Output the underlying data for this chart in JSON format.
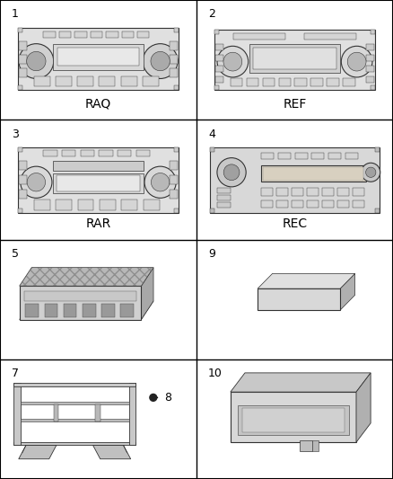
{
  "bg_color": "#ffffff",
  "grid_color": "#000000",
  "text_color": "#000000",
  "items": [
    {
      "num": "1",
      "label": "RAQ",
      "row": 0,
      "col": 0,
      "type": "radio_RAQ"
    },
    {
      "num": "2",
      "label": "REF",
      "row": 0,
      "col": 1,
      "type": "radio_REF"
    },
    {
      "num": "3",
      "label": "RAR",
      "row": 1,
      "col": 0,
      "type": "radio_RAR"
    },
    {
      "num": "4",
      "label": "REC",
      "row": 1,
      "col": 1,
      "type": "radio_REC"
    },
    {
      "num": "5",
      "label": "",
      "row": 2,
      "col": 0,
      "type": "amplifier"
    },
    {
      "num": "9",
      "label": "",
      "row": 2,
      "col": 1,
      "type": "flat_pad"
    },
    {
      "num": "7",
      "label": "",
      "row": 3,
      "col": 0,
      "type": "bracket"
    },
    {
      "num": "10",
      "label": "",
      "row": 3,
      "col": 1,
      "type": "module"
    }
  ],
  "num_rows": 4,
  "num_cols": 2,
  "label_fontsize": 10,
  "num_fontsize": 9,
  "lc": "#333333",
  "fc_body": "#e8e8e8",
  "fc_mid": "#cccccc",
  "fc_dark": "#aaaaaa",
  "fc_light": "#f0f0f0"
}
